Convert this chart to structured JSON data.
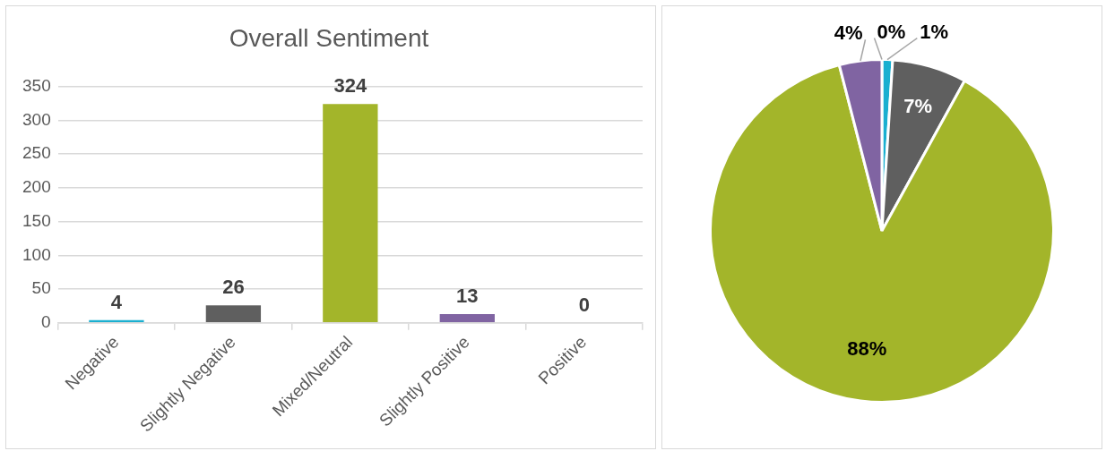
{
  "chart_data": [
    {
      "type": "bar",
      "title": "Overall Sentiment",
      "categories": [
        "Negative",
        "Slightly Negative",
        "Mixed/Neutral",
        "Slightly Positive",
        "Positive"
      ],
      "values": [
        4,
        26,
        324,
        13,
        0
      ],
      "colors": [
        "#1aafd0",
        "#5f5f5f",
        "#a3b52a",
        "#8064a2",
        "#4f81bd"
      ],
      "ylim": [
        0,
        350
      ],
      "yticks": [
        0,
        50,
        100,
        150,
        200,
        250,
        300,
        350
      ],
      "grid": "y",
      "data_labels": true
    },
    {
      "type": "pie",
      "categories": [
        null,
        null,
        null,
        null,
        null
      ],
      "values": [
        1,
        7,
        88,
        4,
        0
      ],
      "colors": [
        "#1aafd0",
        "#5f5f5f",
        "#a3b52a",
        "#8064a2",
        "#4f81bd"
      ],
      "value_labels": [
        "1%",
        "7%",
        "88%",
        "4%",
        "0%"
      ]
    }
  ]
}
